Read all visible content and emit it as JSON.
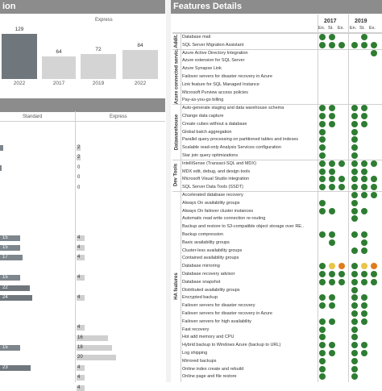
{
  "panels": {
    "left_top_title": "ion",
    "right_title": "Features Details",
    "express_label": "Express",
    "standard_label": "Standard"
  },
  "top_bars": {
    "values": [
      "129",
      "64",
      "72",
      "84"
    ],
    "years": [
      "2022",
      "2017",
      "2019",
      "2022"
    ],
    "fractions": [
      0.8,
      0.4,
      0.45,
      0.52
    ]
  },
  "standard_bars": [
    {
      "v": "",
      "w": 4
    },
    {
      "v": "",
      "w": 0
    },
    {
      "v": "",
      "w": 2
    },
    {
      "v": "",
      "w": 0
    },
    {
      "v": "",
      "w": 0
    },
    {
      "v": "",
      "w": 0
    },
    {
      "v": "",
      "w": 0
    },
    {
      "v": "",
      "w": 0
    },
    {
      "v": "",
      "w": 0
    },
    {
      "v": "15",
      "w": 0.35
    },
    {
      "v": "15",
      "w": 0.35
    },
    {
      "v": "17",
      "w": 0.39
    },
    {
      "v": "",
      "w": 0
    },
    {
      "v": "15",
      "w": 0.35
    },
    {
      "v": "22",
      "w": 0.51
    },
    {
      "v": "24",
      "w": 0.56
    },
    {
      "v": "",
      "w": 0
    },
    {
      "v": "",
      "w": 0
    },
    {
      "v": "",
      "w": 0
    },
    {
      "v": "",
      "w": 0
    },
    {
      "v": "15",
      "w": 0.35
    },
    {
      "v": "",
      "w": 0
    },
    {
      "v": "23",
      "w": 0.53
    },
    {
      "v": "",
      "w": 0
    },
    {
      "v": "",
      "w": 0
    },
    {
      "v": "",
      "w": 0
    }
  ],
  "express_bars": [
    {
      "v": "2",
      "w": 0.05
    },
    {
      "v": "2",
      "w": 0.05
    },
    {
      "v": "0",
      "w": 0
    },
    {
      "v": "0",
      "w": 0
    },
    {
      "v": "0",
      "w": 0
    },
    {
      "v": "",
      "w": 0
    },
    {
      "v": "",
      "w": 0
    },
    {
      "v": "",
      "w": 0
    },
    {
      "v": "",
      "w": 0
    },
    {
      "v": "4",
      "w": 0.1
    },
    {
      "v": "4",
      "w": 0.1
    },
    {
      "v": "4",
      "w": 0.1
    },
    {
      "v": "",
      "w": 0
    },
    {
      "v": "4",
      "w": 0.1
    },
    {
      "v": "",
      "w": 0
    },
    {
      "v": "4",
      "w": 0.1
    },
    {
      "v": "",
      "w": 0
    },
    {
      "v": "",
      "w": 0
    },
    {
      "v": "4",
      "w": 0.1
    },
    {
      "v": "16",
      "w": 0.39
    },
    {
      "v": "18",
      "w": 0.44
    },
    {
      "v": "20",
      "w": 0.49
    },
    {
      "v": "4",
      "w": 0.1
    },
    {
      "v": "4",
      "w": 0.1
    },
    {
      "v": "4",
      "w": 0.1
    },
    {
      "v": "",
      "w": 0
    }
  ],
  "features_header": {
    "year1": "2017",
    "year2": "2019",
    "cols": [
      "En.",
      "St.",
      "Ex.",
      "En.",
      "St.",
      "Ex."
    ]
  },
  "groups": [
    {
      "label": "Addit."
    },
    {
      "label": "Azure connected servic."
    },
    {
      "label": "Datawarehouse"
    },
    {
      "label": "Dev Tools"
    },
    {
      "label": "HA features"
    }
  ],
  "features": [
    {
      "name": "Database mail",
      "d": [
        1,
        1,
        0,
        0,
        1,
        0
      ]
    },
    {
      "name": "SQL Server Migration Assistant",
      "d": [
        1,
        1,
        1,
        1,
        1,
        1
      ]
    },
    {
      "name": "Azure Active Directory Integration",
      "d": [
        0,
        0,
        0,
        0,
        0,
        1
      ]
    },
    {
      "name": "Azure extension for SQL Server",
      "d": [
        0,
        0,
        0,
        0,
        0,
        0
      ]
    },
    {
      "name": "Azure Synapse Link",
      "d": [
        0,
        0,
        0,
        0,
        0,
        0
      ]
    },
    {
      "name": "Failover servers for disaster recovery in Azure",
      "d": [
        0,
        0,
        0,
        0,
        0,
        0
      ]
    },
    {
      "name": "Link feature for SQL Managed Instance",
      "d": [
        0,
        0,
        0,
        0,
        0,
        0
      ]
    },
    {
      "name": "Microsoft Purview access policies",
      "d": [
        0,
        0,
        0,
        0,
        0,
        0
      ]
    },
    {
      "name": "Pay-as-you-go billing",
      "d": [
        0,
        0,
        0,
        0,
        0,
        0
      ]
    },
    {
      "name": "Auto-generate staging and data warehouse schema",
      "d": [
        1,
        1,
        0,
        1,
        1,
        0
      ]
    },
    {
      "name": "Change data capture",
      "d": [
        1,
        1,
        0,
        1,
        1,
        0
      ]
    },
    {
      "name": "Create cubes without a database",
      "d": [
        1,
        1,
        0,
        1,
        1,
        0
      ]
    },
    {
      "name": "Global batch aggregation",
      "d": [
        1,
        0,
        0,
        1,
        0,
        0
      ]
    },
    {
      "name": "Parallel query processing on partitioned tables and indexes",
      "d": [
        1,
        0,
        0,
        1,
        0,
        0
      ]
    },
    {
      "name": "Scalable read-only Analysis Services configuration",
      "d": [
        1,
        0,
        0,
        1,
        0,
        0
      ]
    },
    {
      "name": "Star join query optimizations",
      "d": [
        1,
        0,
        0,
        1,
        0,
        0
      ]
    },
    {
      "name": "IntelliSense (Transact-SQL and MDX)",
      "d": [
        1,
        1,
        1,
        1,
        1,
        1
      ]
    },
    {
      "name": "MDX edit, debug, and design tools",
      "d": [
        1,
        1,
        0,
        1,
        1,
        0
      ]
    },
    {
      "name": "Microsoft Visual Studio integration",
      "d": [
        1,
        1,
        1,
        1,
        1,
        1
      ]
    },
    {
      "name": "SQL Server Data Tools (SSDT)",
      "d": [
        1,
        1,
        1,
        1,
        1,
        1
      ]
    },
    {
      "name": "Accelerated database recovery",
      "d": [
        0,
        0,
        0,
        1,
        1,
        1
      ]
    },
    {
      "name": "Always On availability groups",
      "d": [
        1,
        0,
        0,
        1,
        0,
        0
      ]
    },
    {
      "name": "Always On failover cluster instances",
      "d": [
        1,
        1,
        0,
        1,
        1,
        0
      ]
    },
    {
      "name": "Automatic read write connection re-routing",
      "d": [
        0,
        0,
        0,
        1,
        0,
        0
      ]
    },
    {
      "name": "Backup and restore to S3-compatible object storage over RE..",
      "d": [
        0,
        0,
        0,
        0,
        0,
        0
      ]
    },
    {
      "name": "Backup compression",
      "d": [
        1,
        1,
        0,
        1,
        1,
        0
      ]
    },
    {
      "name": "Basic availability groups",
      "d": [
        0,
        1,
        0,
        0,
        1,
        0
      ]
    },
    {
      "name": "Cluster-less availability groups",
      "d": [
        0,
        0,
        0,
        1,
        1,
        0
      ]
    },
    {
      "name": "Contained availability groups",
      "d": [
        0,
        0,
        0,
        0,
        0,
        0
      ]
    },
    {
      "name": "Database mirroring",
      "d": [
        1,
        2,
        3,
        1,
        2,
        3
      ]
    },
    {
      "name": "Database recovery advisor",
      "d": [
        1,
        1,
        1,
        1,
        1,
        1
      ]
    },
    {
      "name": "Database snapshot",
      "d": [
        1,
        1,
        1,
        1,
        1,
        1
      ]
    },
    {
      "name": "Distributed availability groups",
      "d": [
        0,
        0,
        0,
        1,
        0,
        0
      ]
    },
    {
      "name": "Encrypted backup",
      "d": [
        1,
        1,
        0,
        1,
        1,
        0
      ]
    },
    {
      "name": "Failover servers for disaster recovery",
      "d": [
        1,
        1,
        0,
        1,
        1,
        0
      ]
    },
    {
      "name": "Failover servers for disaster recovery in Azure",
      "d": [
        0,
        0,
        0,
        1,
        1,
        0
      ]
    },
    {
      "name": "Failover servers for high availability",
      "d": [
        1,
        1,
        0,
        1,
        1,
        0
      ]
    },
    {
      "name": "Fast recovery",
      "d": [
        1,
        0,
        0,
        1,
        0,
        0
      ]
    },
    {
      "name": "Hot add memory and CPU",
      "d": [
        1,
        0,
        0,
        1,
        0,
        0
      ]
    },
    {
      "name": "Hybrid backup to Windows Azure (backup to URL)",
      "d": [
        1,
        1,
        0,
        1,
        1,
        0
      ]
    },
    {
      "name": "Log shipping",
      "d": [
        1,
        1,
        0,
        1,
        1,
        0
      ]
    },
    {
      "name": "Mirrored backups",
      "d": [
        1,
        0,
        0,
        1,
        0,
        0
      ]
    },
    {
      "name": "Online index create and rebuild",
      "d": [
        1,
        0,
        0,
        1,
        0,
        0
      ]
    },
    {
      "name": "Online page and file restore",
      "d": [
        1,
        0,
        0,
        1,
        0,
        0
      ]
    }
  ],
  "colors": {
    "green": "#2e7d32",
    "yellow": "#e8c547",
    "orange": "#e07b1f",
    "header_gray": "#8c8c8c",
    "dark_bar": "#6f777d",
    "light_bar": "#d4d4d4"
  }
}
